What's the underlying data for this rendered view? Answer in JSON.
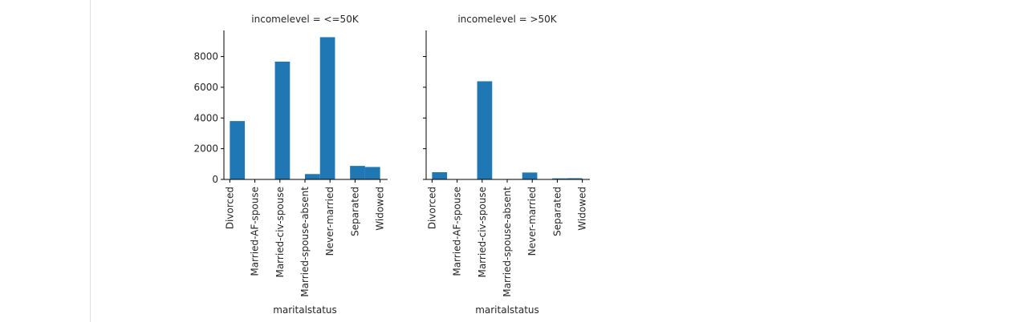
{
  "chart_data": {
    "type": "bar",
    "layout": "facet-grid",
    "shared_y": true,
    "xlabel": "maritalstatus",
    "ylim": [
      0,
      9700
    ],
    "yticks": [
      0,
      2000,
      4000,
      6000,
      8000
    ],
    "categories": [
      "Divorced",
      "Married-AF-spouse",
      "Married-civ-spouse",
      "Married-spouse-absent",
      "Never-married",
      "Separated",
      "Widowed"
    ],
    "bar_color": "#1f77b4",
    "panels": [
      {
        "title": "incomelevel = <=50K",
        "bars": [
          {
            "x0": 0.0,
            "x1": 0.6,
            "value": 3800
          },
          {
            "x0": 0.6,
            "x1": 1.2,
            "value": 14
          },
          {
            "x0": 1.8,
            "x1": 2.4,
            "value": 7670
          },
          {
            "x0": 3.0,
            "x1": 3.6,
            "value": 350
          },
          {
            "x0": 3.6,
            "x1": 4.2,
            "value": 9260
          },
          {
            "x0": 4.8,
            "x1": 5.4,
            "value": 880
          },
          {
            "x0": 5.4,
            "x1": 6.0,
            "value": 810
          }
        ]
      },
      {
        "title": "incomelevel = >50K",
        "bars": [
          {
            "x0": 0.0,
            "x1": 0.6,
            "value": 470
          },
          {
            "x0": 0.6,
            "x1": 1.2,
            "value": 10
          },
          {
            "x0": 1.8,
            "x1": 2.4,
            "value": 6390
          },
          {
            "x0": 3.0,
            "x1": 3.6,
            "value": 30
          },
          {
            "x0": 3.6,
            "x1": 4.2,
            "value": 450
          },
          {
            "x0": 4.8,
            "x1": 5.4,
            "value": 70
          },
          {
            "x0": 5.4,
            "x1": 6.0,
            "value": 80
          }
        ]
      }
    ]
  }
}
